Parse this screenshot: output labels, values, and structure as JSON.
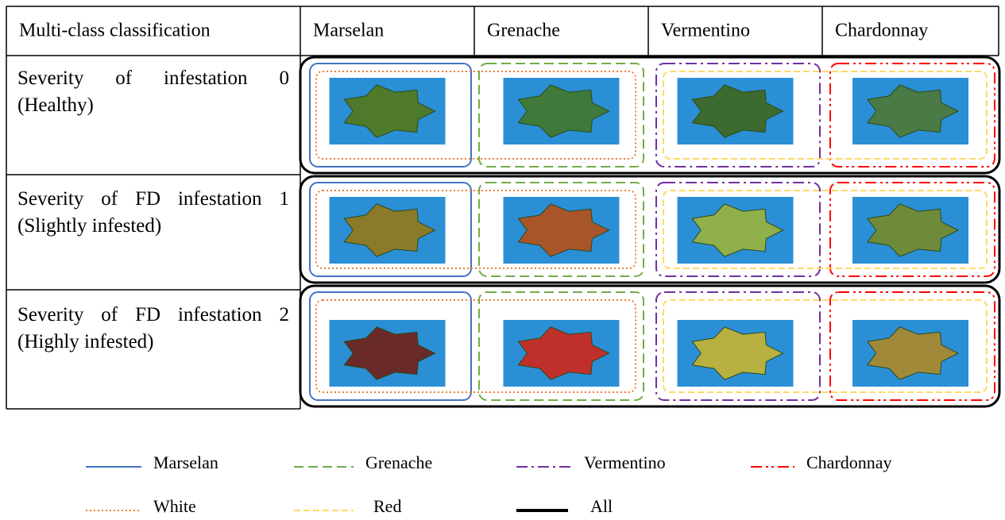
{
  "table": {
    "header": [
      "Multi-class classification",
      "Marselan",
      "Grenache",
      "Vermentino",
      "Chardonnay"
    ],
    "rows": [
      "Severity of infestation 0 (Healthy)",
      "Severity of FD infestation 1 (Slightly infested)",
      "Severity of FD infestation 2 (Highly infested)"
    ]
  },
  "legend": [
    "Marselan",
    "Grenache",
    "Vermentino",
    "Chardonnay",
    "White",
    "Red",
    "All"
  ]
}
